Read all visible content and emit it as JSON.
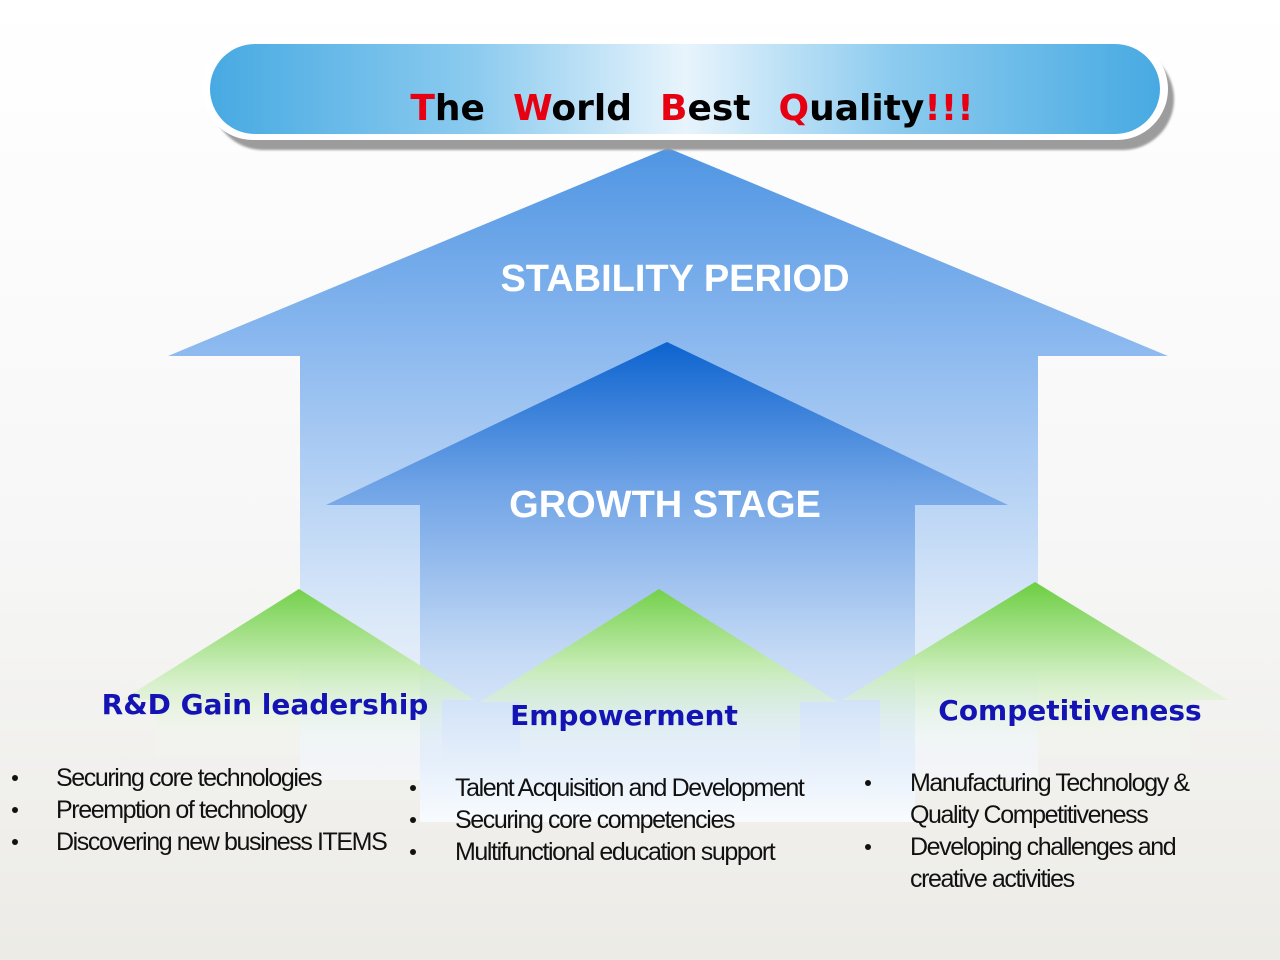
{
  "title": {
    "words": [
      {
        "cap": "T",
        "rest": "he"
      },
      {
        "cap": "W",
        "rest": "orld"
      },
      {
        "cap": "B",
        "rest": "est"
      },
      {
        "cap": "Q",
        "rest": "uality"
      }
    ],
    "exclamation": "!!!"
  },
  "stages": {
    "stability": "STABILITY PERIOD",
    "growth": "GROWTH STAGE"
  },
  "pillars": [
    {
      "heading": "R&D Gain leadership",
      "items": [
        "Securing core technologies",
        "Preemption of technology",
        "Discovering new business ITEMS"
      ]
    },
    {
      "heading": "Empowerment",
      "items": [
        "Talent Acquisition and Development",
        "Securing core competencies",
        "Multifunctional education support"
      ]
    },
    {
      "heading": "Competitiveness",
      "items": [
        "Manufacturing Technology &",
        "Quality Competitiveness",
        "Developing challenges and",
        "creative activities"
      ]
    }
  ],
  "colors": {
    "title_accent": "#e60012",
    "heading": "#1414b4",
    "arrow_blue": "#1a73d9",
    "arrow_green": "#7dd35a"
  }
}
